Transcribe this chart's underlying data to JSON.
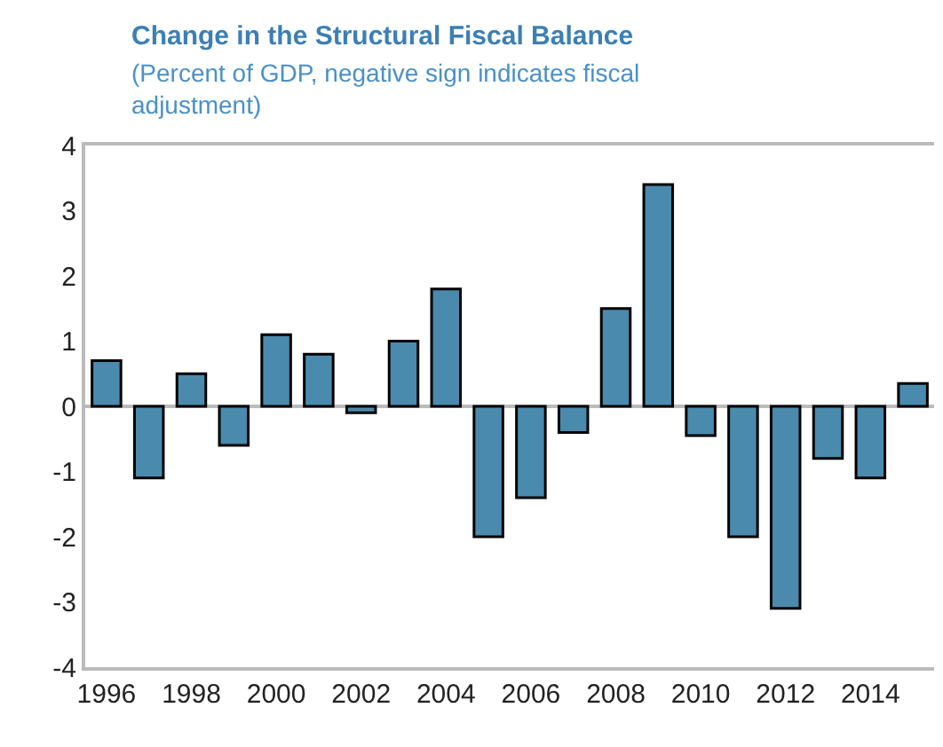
{
  "chart_data": {
    "type": "bar",
    "title": "Change in the Structural Fiscal Balance",
    "subtitle": "(Percent of GDP, negative sign indicates fiscal adjustment)",
    "categories": [
      "1996",
      null,
      "1998",
      null,
      "2000",
      null,
      "2002",
      null,
      "2004",
      null,
      "2006",
      null,
      "2008",
      null,
      "2010",
      null,
      "2012",
      null,
      "2014",
      null
    ],
    "values": [
      0.7,
      -1.1,
      0.5,
      -0.6,
      1.1,
      0.8,
      -0.1,
      1.0,
      1.8,
      -2.0,
      -1.4,
      -0.4,
      1.5,
      3.4,
      -0.45,
      -2.0,
      -3.1,
      -0.8,
      -1.1,
      0.35
    ],
    "color": "#4a8aad",
    "ylim": [
      -4,
      4
    ],
    "yticks": [
      -4,
      -3,
      -2,
      -1,
      0,
      1,
      2,
      3,
      4
    ],
    "legend": false
  }
}
